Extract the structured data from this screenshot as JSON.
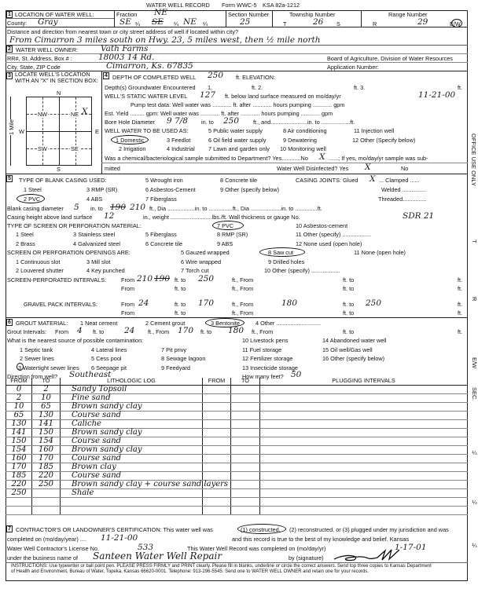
{
  "form": {
    "title": "WATER WELL RECORD",
    "form_no": "Form WWC-5",
    "statute": "KSA 82a-1212"
  },
  "s1": {
    "num": "1",
    "label": "LOCATION OF WATER WELL:",
    "county_label": "County:",
    "county": "Gray",
    "fraction_label": "Fraction",
    "frac1": "SE",
    "frac2": "NE",
    "frac2_over": "SE",
    "frac3": "NE",
    "quarter": "¼",
    "section_label": "Section Number",
    "section": "25",
    "township_label": "Township Number",
    "t": "T",
    "township": "26",
    "s": "S",
    "range_label": "Range Number",
    "r": "R",
    "range": "29",
    "ew": "E/W",
    "distance_label": "Distance and direction from nearest town or city street address of well if located within city?",
    "distance": "From Cimarron 3 miles south on Hwy. 23, 5 miles west, then ½ mile north"
  },
  "s2": {
    "num": "2",
    "label": "WATER WELL OWNER:",
    "owner": "Vath Farms",
    "rr_label": "RR#, St. Address, Box # :",
    "rr": "18003 14 Rd.",
    "city_label": "City, State, ZIP Code",
    "city": "Cimarron, Ks. 67835",
    "board": "Board of Agriculture, Division of Water Resources",
    "app_label": "Application Number:"
  },
  "s3": {
    "num": "3",
    "label": "LOCATE WELL'S LOCATION WITH AN \"X\" IN SECTION BOX:",
    "n": "N",
    "s": "S",
    "e": "E",
    "w": "W",
    "nw": "NW",
    "ne": "NE",
    "sw": "SW",
    "se": "SE",
    "mark": "X",
    "mile": "1 Mile"
  },
  "s4": {
    "num": "4",
    "depth_label": "DEPTH OF COMPLETED WELL",
    "depth": "250",
    "ft_elev": "ft. ELEVATION:",
    "gw_label": "Depth(s) Groundwater Encountered",
    "gw1": "1.",
    "gw2": "ft. 2.",
    "gw3": "ft. 3.",
    "gw_end": "ft.",
    "static_label": "WELL'S STATIC WATER LEVEL",
    "static": "127",
    "static_mid": "ft. below land surface measured on mo/day/yr",
    "static_date": "11-21-00",
    "pump_label": "Pump test data:  Well water was ............ ft. after ............ hours pumping ............ gpm",
    "yield_label": "Est. Yield ......... gpm:  Well water was ............ ft. after ............ hours pumping ............ gpm",
    "bore_label": "Bore Hole Diameter",
    "bore": "9 7/8",
    "bore_in": "in. to",
    "bore_to": "250",
    "bore_rest": "ft., and.......................in. to ..................ft.",
    "use_label": "WELL WATER TO BE USED AS:",
    "uses": [
      "1 Domestic",
      "2 Irrigation",
      "3 Feedlot",
      "4 Industrial",
      "5 Public water supply",
      "6 Oil field water supply",
      "7 Lawn and garden only",
      "8 Air conditioning",
      "9 Dewatering",
      "10 Monitoring well",
      "11 Injection well",
      "12 Other (Specify below)"
    ],
    "chem_label": "Was a chemical/bacteriological sample submitted to Department? Yes............No",
    "chem_mark": "X",
    "chem_rest": "......; If yes, mo/day/yr sample was sub-",
    "mitted": "mitted",
    "disinf_label": "Water Well Disinfected?  Yes",
    "disinf_mark": "X",
    "disinf_no": "No"
  },
  "s5": {
    "num": "5",
    "casing_label": "TYPE OF BLANK CASING USED:",
    "casing": [
      "1 Steel",
      "2 PVC",
      "3 RMP (SR)",
      "4 ABS",
      "5 Wrought iron",
      "6 Asbestos-Cement",
      "7 Fiberglass",
      "8 Concrete tile",
      "9 Other (specify below)"
    ],
    "joints_label": "CASING JOINTS: Glued",
    "joints_mark": "X",
    "clamped": "... Clamped ......",
    "welded": "Welded ...............",
    "threaded": "Threaded...............",
    "diam_label": "Blank casing diameter",
    "diam": "5",
    "diam_in": "in. to",
    "diam_to_old": "190",
    "diam_to": "210",
    "diam_rest": "ft., Dia .................in. to ...............ft., Dia ...................in. to ..............ft.",
    "height_label": "Casing height above land surface",
    "height": "12",
    "height_rest": "in., weight ..........................lbs./ft. Wall thickness or gauge No.",
    "gauge": "SDR 21",
    "screen_label": "TYPE OF SCREEN OR PERFORATION MATERIAL:",
    "screen": [
      "1 Steel",
      "2 Brass",
      "3 Stainless steel",
      "4 Galvanized steel",
      "5 Fiberglass",
      "6 Concrete tile",
      "7 PVC",
      "8 RMP (SR)",
      "9 ABS",
      "10 Asbestos-cement",
      "11 Other (specify) ..................",
      "12 None used (open hole)"
    ],
    "open_label": "SCREEN OR PERFORATION OPENINGS ARE:",
    "openings": [
      "1 Continuous slot",
      "2 Louvered shutter",
      "3 Mill slot",
      "4 Key punched",
      "5 Gauzed wrapped",
      "6 Wire wrapped",
      "7 Torch cut",
      "8 Saw cut",
      "9 Drilled holes",
      "10 Other (specify) ..................",
      "11 None (open hole)"
    ],
    "perf_label": "SCREEN-PERFORATED INTERVALS:",
    "from": "From",
    "ft_to": "ft. to",
    "ft_from": "ft., From",
    "ft": "ft.",
    "perf_from": "210",
    "perf_from_old": "190",
    "perf_to": "250",
    "gravel_label": "GRAVEL PACK INTERVALS:",
    "gravel_from": "24",
    "gravel_to": "170",
    "gravel_from2": "180",
    "gravel_to2": "250"
  },
  "s6": {
    "num": "6",
    "grout_label": "GROUT MATERIAL:",
    "grout": [
      "1 Neat cement",
      "2 Cement grout",
      "3 Bentonite",
      "4 Other ............................"
    ],
    "gi_label": "Grout Intervals:",
    "gi_from": "4",
    "gi_to": "24",
    "gi_from2": "170",
    "gi_to2": "180",
    "contam_label": "What is the nearest source of possible contamination:",
    "contam": [
      "1 Septic tank",
      "2 Sewer lines",
      "3 Watertight sewer lines",
      "4 Lateral lines",
      "5 Cess pool",
      "6 Seepage pit",
      "7 Pit privy",
      "8 Sewage lagoon",
      "9 Feedyard",
      "10 Livestock pens",
      "11 Fuel storage",
      "12 Fertilizer storage",
      "13 Insecticide storage",
      "14 Abandoned water well",
      "15 Oil well/Gas well",
      "16 Other (specify below)"
    ],
    "dir_label": "Direction from well?",
    "direction": "Southeast",
    "feet_label": "How many feet?",
    "feet": "50"
  },
  "log": {
    "headers": [
      "FROM",
      "TO",
      "LITHOLOGIC LOG",
      "FROM",
      "TO",
      "PLUGGING INTERVALS"
    ],
    "rows": [
      [
        "0",
        "2",
        "Sandy Topsoil"
      ],
      [
        "2",
        "10",
        "Fine sand"
      ],
      [
        "10",
        "65",
        "Brown sandy clay"
      ],
      [
        "65",
        "130",
        "Course sand"
      ],
      [
        "130",
        "141",
        "Caliche"
      ],
      [
        "141",
        "150",
        "Brown sandy clay"
      ],
      [
        "150",
        "154",
        "Course sand"
      ],
      [
        "154",
        "160",
        "Brown sandy clay"
      ],
      [
        "160",
        "170",
        "Course sand"
      ],
      [
        "170",
        "185",
        "Brown clay"
      ],
      [
        "185",
        "220",
        "Course sand"
      ],
      [
        "220",
        "250",
        "Brown sandy clay + course sand layers"
      ],
      [
        "250",
        "",
        "Shale"
      ],
      [
        "",
        "",
        ""
      ],
      [
        "",
        "",
        ""
      ]
    ]
  },
  "s7": {
    "num": "7",
    "cert_a": "CONTRACTOR'S OR LANDOWNER'S CERTIFICATION: This water well was",
    "cert_b": "(1) constructed,",
    "cert_c": "(2) reconstructed, or (3) plugged under my jurisdiction and was",
    "comp_label": "completed on (mo/day/year) ....",
    "comp_date": "11-21-00",
    "comp_rest": "and this record is true to the best of my knowledge and belief. Kansas",
    "lic_label": "Water Well Contractor's License No.",
    "lic": "533",
    "rec_label": "This Water Well Record was completed on (mo/day/yr)",
    "rec_date": "1-17-01",
    "biz_label": "under the business name of",
    "biz": "Santeen Water Well Repair",
    "sig_label": "by (signature)",
    "instr1": "INSTRUCTIONS: Use typewriter or ball point pen. PLEASE PRESS FIRMLY and PRINT clearly. Please fill in blanks, underline or circle the correct answers. Send top three copies to Kansas Department",
    "instr2": "of Health and Environment, Bureau of Water, Topeka, Kansas 66620-0001. Telephone: 913-296-5545. Send one to WATER WELL OWNER and retain one for your records."
  },
  "margin": {
    "office": "OFFICE USE ONLY",
    "t": "T",
    "r": "R",
    "ew": "E/W",
    "sec": "SEC.",
    "q": "¼"
  }
}
